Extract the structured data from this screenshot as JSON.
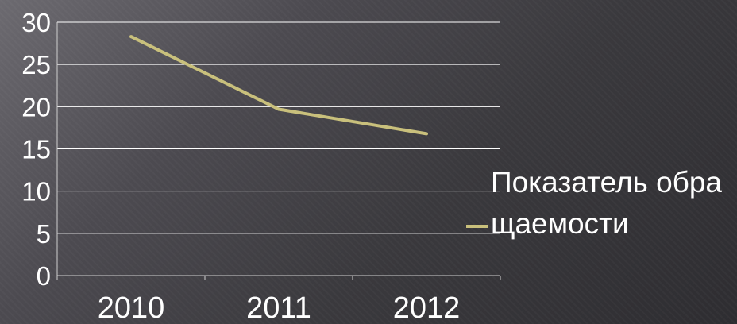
{
  "chart_data": {
    "type": "line",
    "title": "",
    "xlabel": "",
    "ylabel": "",
    "categories": [
      "2010",
      "2011",
      "2012"
    ],
    "series": [
      {
        "name": "Показатель обращаемости",
        "values": [
          28.3,
          19.7,
          16.8
        ],
        "color": "#c9c07c"
      }
    ],
    "ylim": [
      0,
      30
    ],
    "yticks": [
      "0",
      "5",
      "10",
      "15",
      "20",
      "25",
      "30"
    ],
    "grid": true,
    "legend_position": "right"
  }
}
